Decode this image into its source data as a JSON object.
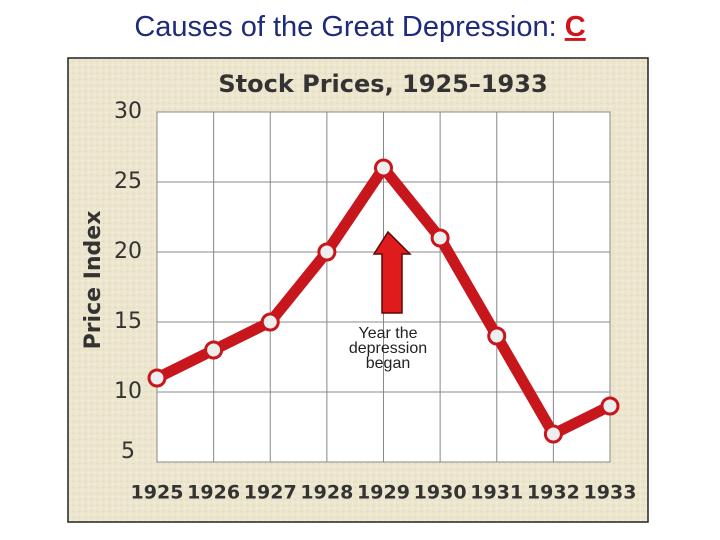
{
  "header": {
    "title": "Causes of the Great Depression:",
    "answer": "C"
  },
  "chart_data": {
    "type": "line",
    "title": "Stock Prices, 1925–1933",
    "y_label": "Price Index",
    "x": [
      1925,
      1926,
      1927,
      1928,
      1929,
      1930,
      1931,
      1932,
      1933
    ],
    "series": [
      {
        "name": "Stock Prices",
        "color": "#c8161d",
        "values": [
          11,
          13,
          15,
          20,
          26,
          21,
          14,
          7,
          9
        ]
      }
    ],
    "xlim": [
      1925,
      1933
    ],
    "xticks": [
      1925,
      1926,
      1927,
      1928,
      1929,
      1930,
      1931,
      1932,
      1933
    ],
    "ylim": [
      5,
      30
    ],
    "yticks": [
      5,
      10,
      15,
      20,
      25,
      30
    ],
    "grid": true,
    "annotation": "Year the depression began"
  }
}
